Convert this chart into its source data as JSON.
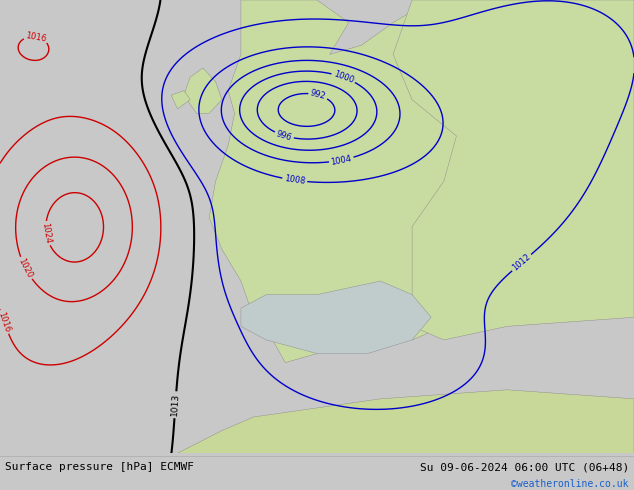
{
  "title_left": "Surface pressure [hPa] ECMWF",
  "title_right": "Su 09-06-2024 06:00 UTC (06+48)",
  "copyright": "©weatheronline.co.uk",
  "bg_ocean_color": "#d8dce0",
  "land_color": "#c8dba0",
  "fig_width": 6.34,
  "fig_height": 4.9,
  "dpi": 100,
  "font_size_bottom": 8.0,
  "font_size_copyright": 7.0,
  "levels_blue": [
    992,
    996,
    1000,
    1004,
    1008,
    1012
  ],
  "levels_black": [
    1013
  ],
  "levels_red": [
    1016,
    1020,
    1024
  ],
  "color_blue": "#0000cc",
  "color_black": "#000000",
  "color_red": "#cc0000",
  "color_copyright": "#1a5fcc"
}
